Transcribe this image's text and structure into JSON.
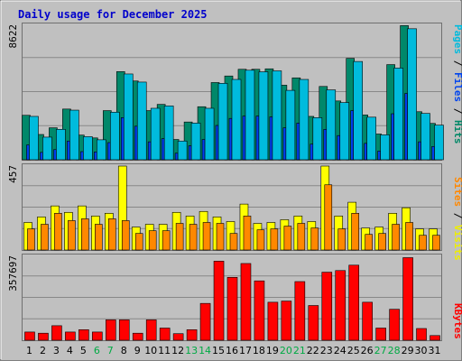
{
  "chart_data": {
    "type": "bar",
    "title": "Daily usage for December 2025",
    "categories": [
      "1",
      "2",
      "3",
      "4",
      "5",
      "6",
      "7",
      "8",
      "9",
      "10",
      "11",
      "12",
      "13",
      "14",
      "15",
      "16",
      "17",
      "18",
      "19",
      "20",
      "21",
      "22",
      "23",
      "24",
      "25",
      "26",
      "27",
      "28",
      "29",
      "30",
      "31"
    ],
    "weekend_days": [
      "6",
      "7",
      "13",
      "14",
      "20",
      "21",
      "27",
      "28"
    ],
    "panels": [
      {
        "id": "hits",
        "ymax_label": "8622",
        "ymax": 8622,
        "axis_labels": [
          {
            "text": "Pages",
            "color": "#00bbdd"
          },
          {
            "text": "Files",
            "color": "#0044ee"
          },
          {
            "text": "Hits",
            "color": "#008866"
          }
        ],
        "series": [
          {
            "name": "Hits",
            "color": "#00886a",
            "values": [
              2850,
              1620,
              2050,
              3250,
              1580,
              1400,
              3150,
              5650,
              5050,
              3150,
              3550,
              1300,
              2420,
              3400,
              4950,
              5370,
              5800,
              5800,
              5830,
              4780,
              5250,
              2780,
              4700,
              3770,
              6500,
              2870,
              1650,
              6100,
              8600,
              3080,
              2330
            ]
          },
          {
            "name": "Files",
            "color": "#0040ee",
            "values": [
              950,
              470,
              650,
              1200,
              520,
              500,
              1100,
              2700,
              2150,
              1150,
              1350,
              420,
              900,
              1300,
              2200,
              2650,
              2800,
              2800,
              2750,
              2050,
              2350,
              1000,
              1950,
              1550,
              3150,
              1050,
              560,
              2950,
              4250,
              1150,
              850
            ]
          },
          {
            "name": "Pages",
            "color": "#00bbdd",
            "values": [
              2780,
              1450,
              1950,
              3180,
              1480,
              1280,
              3050,
              5500,
              4980,
              3300,
              3450,
              1200,
              2350,
              3300,
              4900,
              5150,
              5740,
              5640,
              5700,
              4450,
              5150,
              2700,
              4480,
              3670,
              6300,
              2730,
              1600,
              5880,
              8400,
              2970,
              2220
            ]
          }
        ]
      },
      {
        "id": "visits",
        "ymax_label": "457",
        "ymax": 457,
        "axis_labels": [
          {
            "text": "Sites",
            "color": "#ff8800"
          },
          {
            "text": "Visits",
            "color": "#eeee00"
          }
        ],
        "series": [
          {
            "name": "Visits",
            "color": "#ffff00",
            "values": [
              150,
              180,
              240,
              205,
              240,
              185,
              200,
              457,
              125,
              140,
              140,
              205,
              185,
              210,
              180,
              155,
              250,
              145,
              150,
              165,
              185,
              155,
              457,
              185,
              260,
              120,
              125,
              200,
              230,
              115,
              115
            ]
          },
          {
            "name": "Sites",
            "color": "#ff8800",
            "values": [
              115,
              140,
              200,
              160,
              170,
              140,
              170,
              160,
              90,
              105,
              105,
              145,
              140,
              150,
              145,
              90,
              185,
              110,
              115,
              130,
              145,
              120,
              355,
              115,
              200,
              85,
              90,
              140,
              150,
              80,
              80
            ]
          }
        ]
      },
      {
        "id": "kbytes",
        "ymax_label": "357697",
        "ymax": 357697,
        "axis_labels": [
          {
            "text": "KBytes",
            "color": "#ff0000"
          }
        ],
        "series": [
          {
            "name": "KBytes",
            "color": "#ff0000",
            "values": [
              35000,
              30000,
              62000,
              35000,
              45000,
              35000,
              87000,
              87000,
              30000,
              87000,
              52000,
              28000,
              45000,
              157000,
              337000,
              268000,
              327000,
              253000,
              162000,
              167000,
              250000,
              148000,
              290000,
              297000,
              320000,
              162000,
              52000,
              132000,
              352000,
              50000,
              20000
            ]
          }
        ]
      }
    ]
  }
}
